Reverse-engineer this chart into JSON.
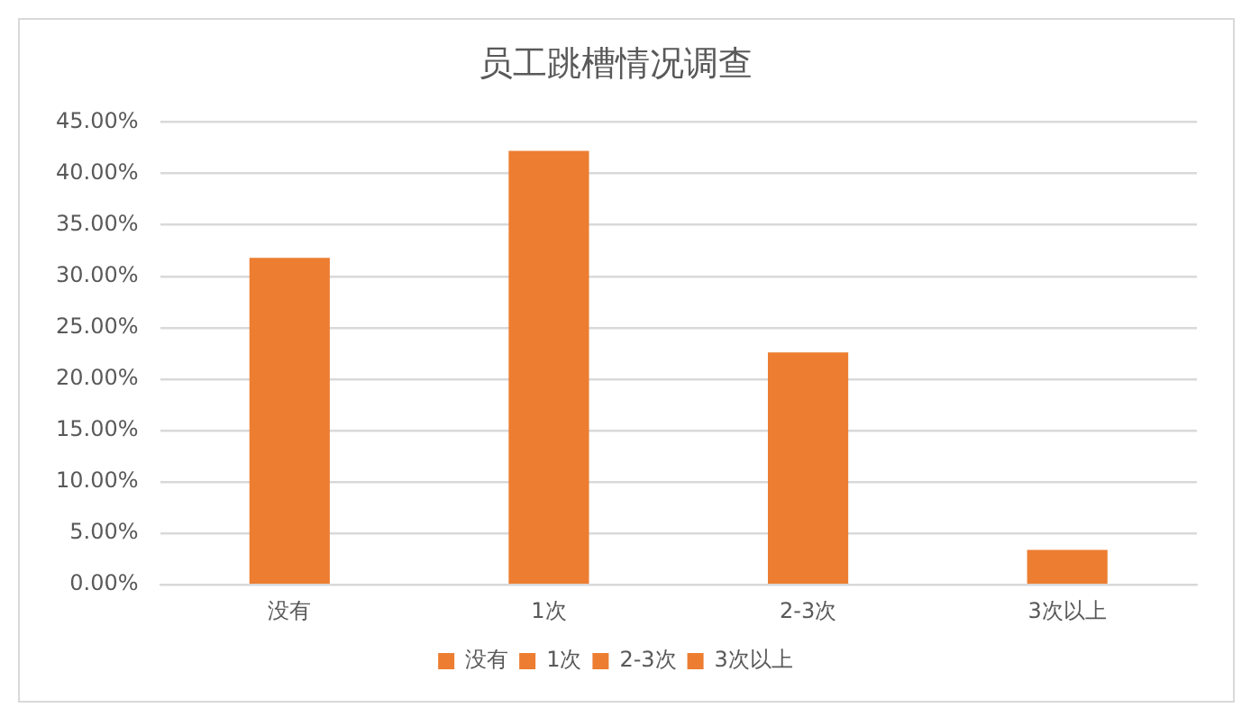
{
  "chart_data": {
    "type": "bar",
    "title": "员工跳槽情况调查",
    "categories": [
      "没有",
      "1次",
      "2-3次",
      "3次以上"
    ],
    "series": [
      {
        "name": "没有",
        "color": "#ed7d31",
        "values": [
          31.8,
          null,
          null,
          null
        ]
      },
      {
        "name": "1次",
        "color": "#ed7d31",
        "values": [
          null,
          42.2,
          null,
          null
        ]
      },
      {
        "name": "2-3次",
        "color": "#ed7d31",
        "values": [
          null,
          null,
          22.6,
          null
        ]
      },
      {
        "name": "3次以上",
        "color": "#ed7d31",
        "values": [
          null,
          null,
          null,
          3.4
        ]
      }
    ],
    "ylim": [
      0,
      45
    ],
    "yticks": [
      {
        "value": 0,
        "label": "0.00%"
      },
      {
        "value": 5,
        "label": "5.00%"
      },
      {
        "value": 10,
        "label": "10.00%"
      },
      {
        "value": 15,
        "label": "15.00%"
      },
      {
        "value": 20,
        "label": "20.00%"
      },
      {
        "value": 25,
        "label": "25.00%"
      },
      {
        "value": 30,
        "label": "30.00%"
      },
      {
        "value": 35,
        "label": "35.00%"
      },
      {
        "value": 40,
        "label": "40.00%"
      },
      {
        "value": 45,
        "label": "45.00%"
      }
    ],
    "grid": "y",
    "legend": "bottom"
  }
}
